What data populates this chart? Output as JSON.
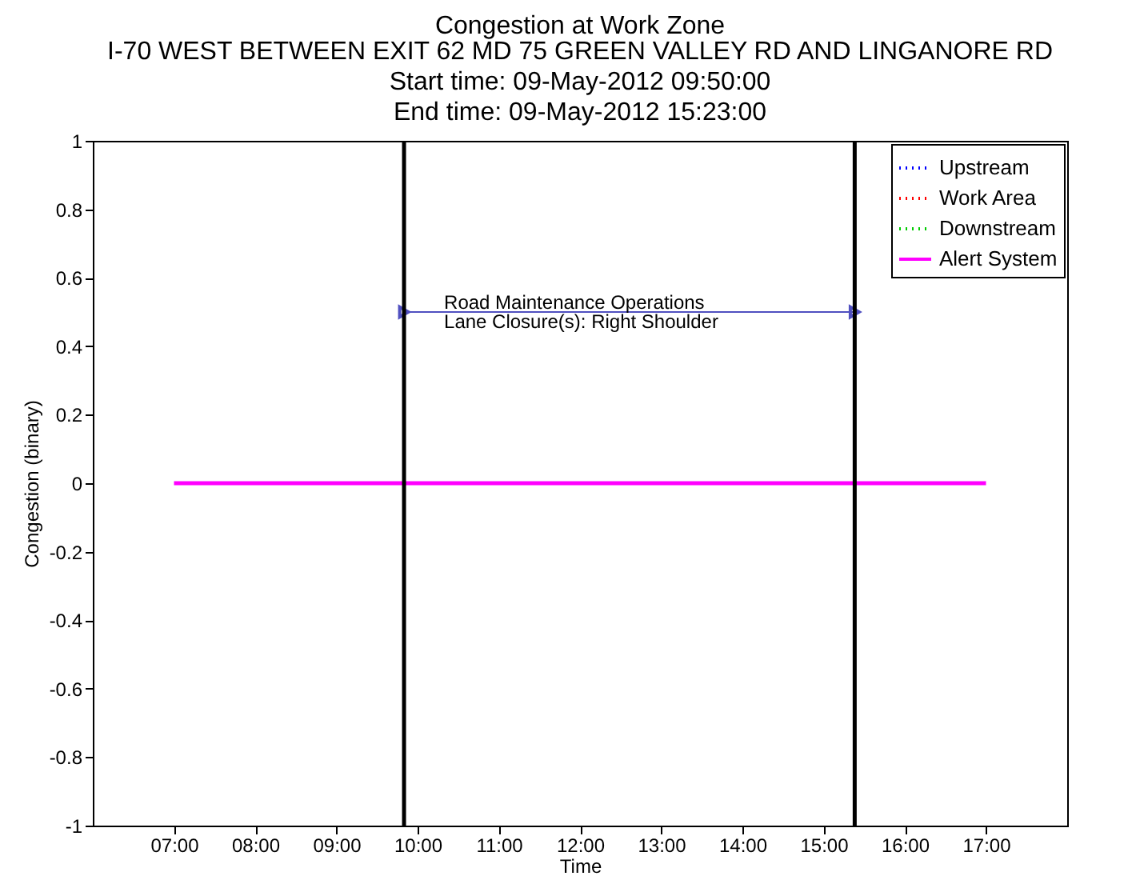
{
  "chart_data": {
    "type": "line",
    "title": "Congestion at Work Zone",
    "subtitle": "I-70 WEST BETWEEN EXIT 62 MD 75 GREEN VALLEY RD AND LINGANORE RD\nStart time: 09-May-2012 09:50:00\nEnd time: 09-May-2012 15:23:00",
    "xlabel": "Time",
    "ylabel": "Congestion (binary)",
    "x": [
      7,
      17
    ],
    "series": [
      {
        "name": "Upstream",
        "color": "#0000ff",
        "line_style": "dotted",
        "values": [
          null,
          null
        ]
      },
      {
        "name": "Work Area",
        "color": "#ff0000",
        "line_style": "dotted",
        "values": [
          null,
          null
        ]
      },
      {
        "name": "Downstream",
        "color": "#00cc00",
        "line_style": "dotted",
        "values": [
          null,
          null
        ]
      },
      {
        "name": "Alert System",
        "color": "#ff00ff",
        "line_style": "solid",
        "values": [
          0,
          0
        ]
      },
      {
        "type": "line",
        "color": "#5050c0",
        "line_style": "solid",
        "marker": "triangle",
        "x": [
          9.833,
          15.383
        ],
        "values": [
          0.5,
          0.5
        ]
      }
    ],
    "xlim": [
      6,
      18
    ],
    "xticks": [
      {
        "value": 7,
        "label": "07:00"
      },
      {
        "value": 8,
        "label": "08:00"
      },
      {
        "value": 9,
        "label": "09:00"
      },
      {
        "value": 10,
        "label": "10:00"
      },
      {
        "value": 11,
        "label": "11:00"
      },
      {
        "value": 12,
        "label": "12:00"
      },
      {
        "value": 13,
        "label": "13:00"
      },
      {
        "value": 14,
        "label": "14:00"
      },
      {
        "value": 15,
        "label": "15:00"
      },
      {
        "value": 16,
        "label": "16:00"
      },
      {
        "value": 17,
        "label": "17:00"
      }
    ],
    "ylim": [
      -1,
      1
    ],
    "yticks": [
      -1,
      -0.8,
      -0.6,
      -0.4,
      -0.2,
      0,
      0.2,
      0.4,
      0.6,
      0.8,
      1
    ],
    "ref_lines": [
      {
        "axis": "x",
        "value": 9.833,
        "color": "#000000"
      },
      {
        "axis": "x",
        "value": 15.383,
        "color": "#000000"
      }
    ],
    "annotations": [
      {
        "text": "Road Maintenance Operations",
        "x": 9.833,
        "y": 0.5
      },
      {
        "text": "Lane Closure(s): Right Shoulder",
        "x": 9.833,
        "y": 0.5
      }
    ],
    "grid": false,
    "legend": "top right",
    "marker": "none"
  }
}
